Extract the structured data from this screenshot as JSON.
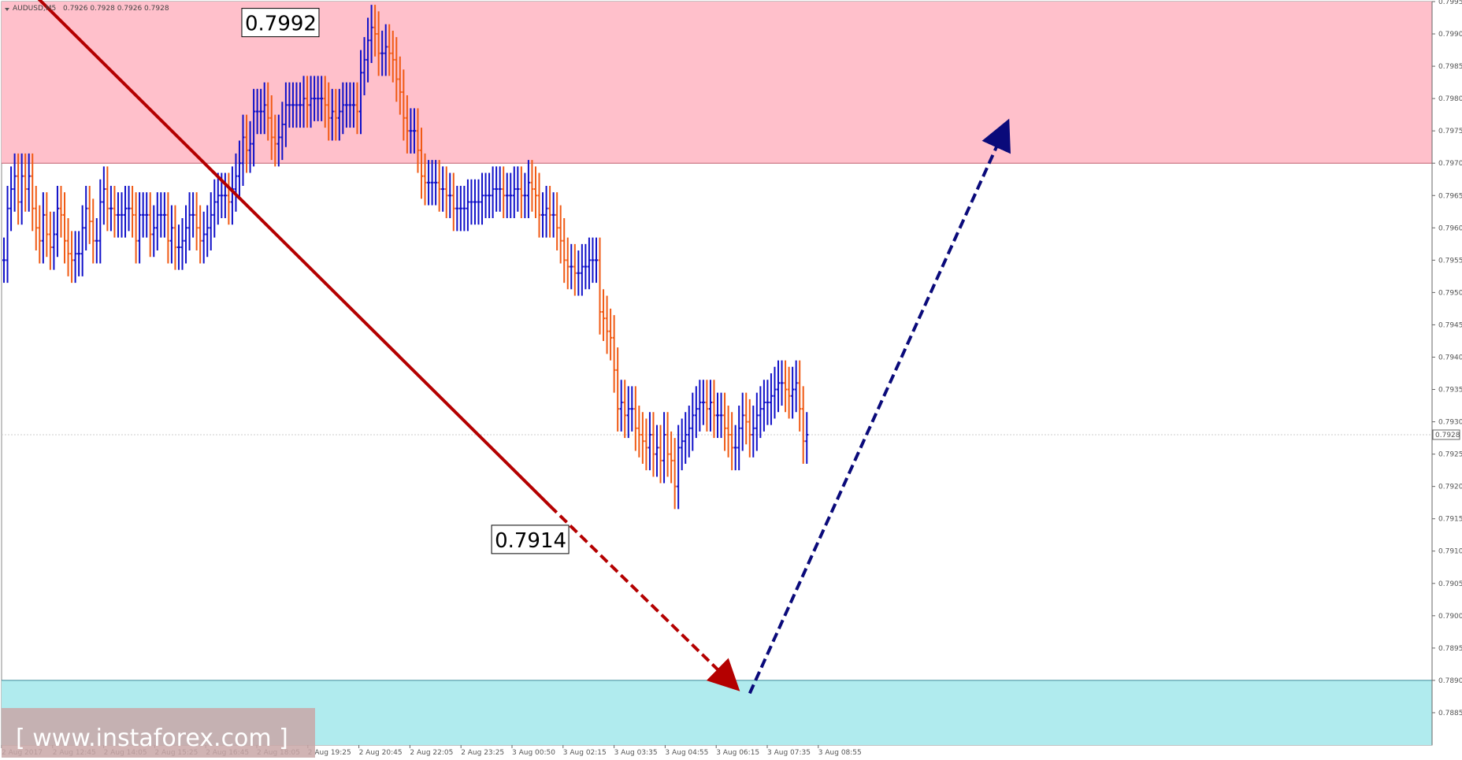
{
  "header": {
    "symbol_label": "AUDUSD,M5",
    "ohlc_text": "0.7926 0.7928 0.7926 0.7928"
  },
  "watermark": {
    "text": "[ www.instaforex.com ]"
  },
  "colors": {
    "resistance_zone": "#FFC0CB",
    "support_zone": "#B0EBEE",
    "bull_bar": "#1010C8",
    "bear_bar": "#F05A14",
    "trend_line": "#B40000",
    "forecast_up": "#0A0A7A",
    "background": "#ffffff",
    "watermark_bg": "#C9A7A7"
  },
  "chart_data": {
    "type": "bar",
    "instrument": "AUDUSD",
    "timeframe": "M5",
    "ylim": [
      0.788,
      0.7995
    ],
    "y_ticks": [
      "0.7995",
      "0.7990",
      "0.7985",
      "0.7980",
      "0.7975",
      "0.7970",
      "0.7965",
      "0.7960",
      "0.7955",
      "0.7950",
      "0.7945",
      "0.7940",
      "0.7935",
      "0.7930",
      "0.7925",
      "0.7920",
      "0.7915",
      "0.7910",
      "0.7905",
      "0.7900",
      "0.7895",
      "0.7890",
      "0.7885"
    ],
    "y_tick_values": [
      0.7995,
      0.799,
      0.7985,
      0.798,
      0.7975,
      0.797,
      0.7965,
      0.796,
      0.7955,
      0.795,
      0.7945,
      0.794,
      0.7935,
      0.793,
      0.7925,
      0.792,
      0.7915,
      0.791,
      0.7905,
      0.79,
      0.7895,
      0.789,
      0.7885
    ],
    "x_ticks": [
      "2 Aug 2017",
      "2 Aug 12:45",
      "2 Aug 14:05",
      "2 Aug 15:25",
      "2 Aug 16:45",
      "2 Aug 18:05",
      "2 Aug 19:25",
      "2 Aug 20:45",
      "2 Aug 22:05",
      "2 Aug 23:25",
      "3 Aug 00:50",
      "3 Aug 02:15",
      "3 Aug 03:35",
      "3 Aug 04:55",
      "3 Aug 06:15",
      "3 Aug 07:35",
      "3 Aug 08:55"
    ],
    "current_price": "0.7928",
    "zones": [
      {
        "name": "resistance",
        "from": 0.797,
        "to": 0.7995
      },
      {
        "name": "support",
        "from": 0.788,
        "to": 0.789
      }
    ],
    "callouts": [
      {
        "label": "0.7992",
        "bar_index": 66,
        "price": 0.7992
      },
      {
        "label": "0.7914",
        "bar_index": 136,
        "price": 0.7914
      }
    ],
    "trend_line": {
      "from_bar": 5,
      "from_price": 0.7998,
      "to_bar": 153,
      "to_price": 0.7917
    },
    "forecast": [
      {
        "name": "down",
        "from_bar": 153,
        "from_price": 0.7917,
        "to_bar": 205,
        "to_price": 0.7889
      },
      {
        "name": "up",
        "from_bar": 209,
        "from_price": 0.7888,
        "to_bar": 281,
        "to_price": 0.7976
      }
    ],
    "closes": [
      0.7955,
      0.7963,
      0.7966,
      0.7968,
      0.7964,
      0.7968,
      0.7966,
      0.7968,
      0.7963,
      0.796,
      0.7958,
      0.7962,
      0.7959,
      0.7957,
      0.7959,
      0.7963,
      0.7962,
      0.7958,
      0.7956,
      0.7955,
      0.7956,
      0.7956,
      0.796,
      0.7963,
      0.7961,
      0.7958,
      0.7958,
      0.7964,
      0.7966,
      0.7963,
      0.7963,
      0.7962,
      0.7962,
      0.7962,
      0.7963,
      0.7963,
      0.7962,
      0.7958,
      0.7962,
      0.7962,
      0.7962,
      0.7959,
      0.796,
      0.7962,
      0.7962,
      0.7962,
      0.7958,
      0.796,
      0.7957,
      0.7957,
      0.7958,
      0.796,
      0.7962,
      0.7962,
      0.796,
      0.7958,
      0.7959,
      0.796,
      0.7962,
      0.7964,
      0.7965,
      0.7965,
      0.7965,
      0.7964,
      0.7966,
      0.7968,
      0.797,
      0.7974,
      0.7972,
      0.7973,
      0.7978,
      0.7978,
      0.7978,
      0.7979,
      0.7977,
      0.7974,
      0.7973,
      0.7974,
      0.7976,
      0.7979,
      0.7979,
      0.7979,
      0.7979,
      0.7979,
      0.798,
      0.7979,
      0.798,
      0.798,
      0.798,
      0.798,
      0.7979,
      0.7977,
      0.7978,
      0.7977,
      0.7978,
      0.7979,
      0.7979,
      0.7979,
      0.7979,
      0.7978,
      0.7984,
      0.7986,
      0.7989,
      0.7991,
      0.799,
      0.7987,
      0.7987,
      0.7988,
      0.7987,
      0.7986,
      0.7983,
      0.7981,
      0.7977,
      0.7975,
      0.7975,
      0.7975,
      0.7972,
      0.7968,
      0.7967,
      0.7967,
      0.7967,
      0.7967,
      0.7966,
      0.7966,
      0.7965,
      0.7965,
      0.7963,
      0.7963,
      0.7963,
      0.7963,
      0.7964,
      0.7964,
      0.7964,
      0.7964,
      0.7965,
      0.7965,
      0.7965,
      0.7966,
      0.7966,
      0.7966,
      0.7965,
      0.7965,
      0.7965,
      0.7966,
      0.7966,
      0.7965,
      0.7965,
      0.7967,
      0.7966,
      0.7965,
      0.7962,
      0.7962,
      0.7963,
      0.7962,
      0.7962,
      0.796,
      0.7958,
      0.7955,
      0.7954,
      0.7954,
      0.7953,
      0.7953,
      0.7954,
      0.7954,
      0.7955,
      0.7955,
      0.7955,
      0.7947,
      0.7946,
      0.7944,
      0.7943,
      0.7938,
      0.7932,
      0.7933,
      0.7931,
      0.7932,
      0.7932,
      0.7929,
      0.7928,
      0.7927,
      0.7926,
      0.7928,
      0.7925,
      0.7926,
      0.7924,
      0.7928,
      0.7925,
      0.7924,
      0.792,
      0.7926,
      0.7927,
      0.7928,
      0.7929,
      0.7931,
      0.7932,
      0.7933,
      0.7933,
      0.7932,
      0.7933,
      0.7931,
      0.7931,
      0.7931,
      0.7929,
      0.7928,
      0.7926,
      0.7926,
      0.7929,
      0.7931,
      0.793,
      0.7928,
      0.7929,
      0.7931,
      0.7932,
      0.7933,
      0.7933,
      0.7934,
      0.7935,
      0.7936,
      0.7936,
      0.7935,
      0.7934,
      0.7935,
      0.7936,
      0.7932,
      0.7927,
      0.7928
    ]
  }
}
